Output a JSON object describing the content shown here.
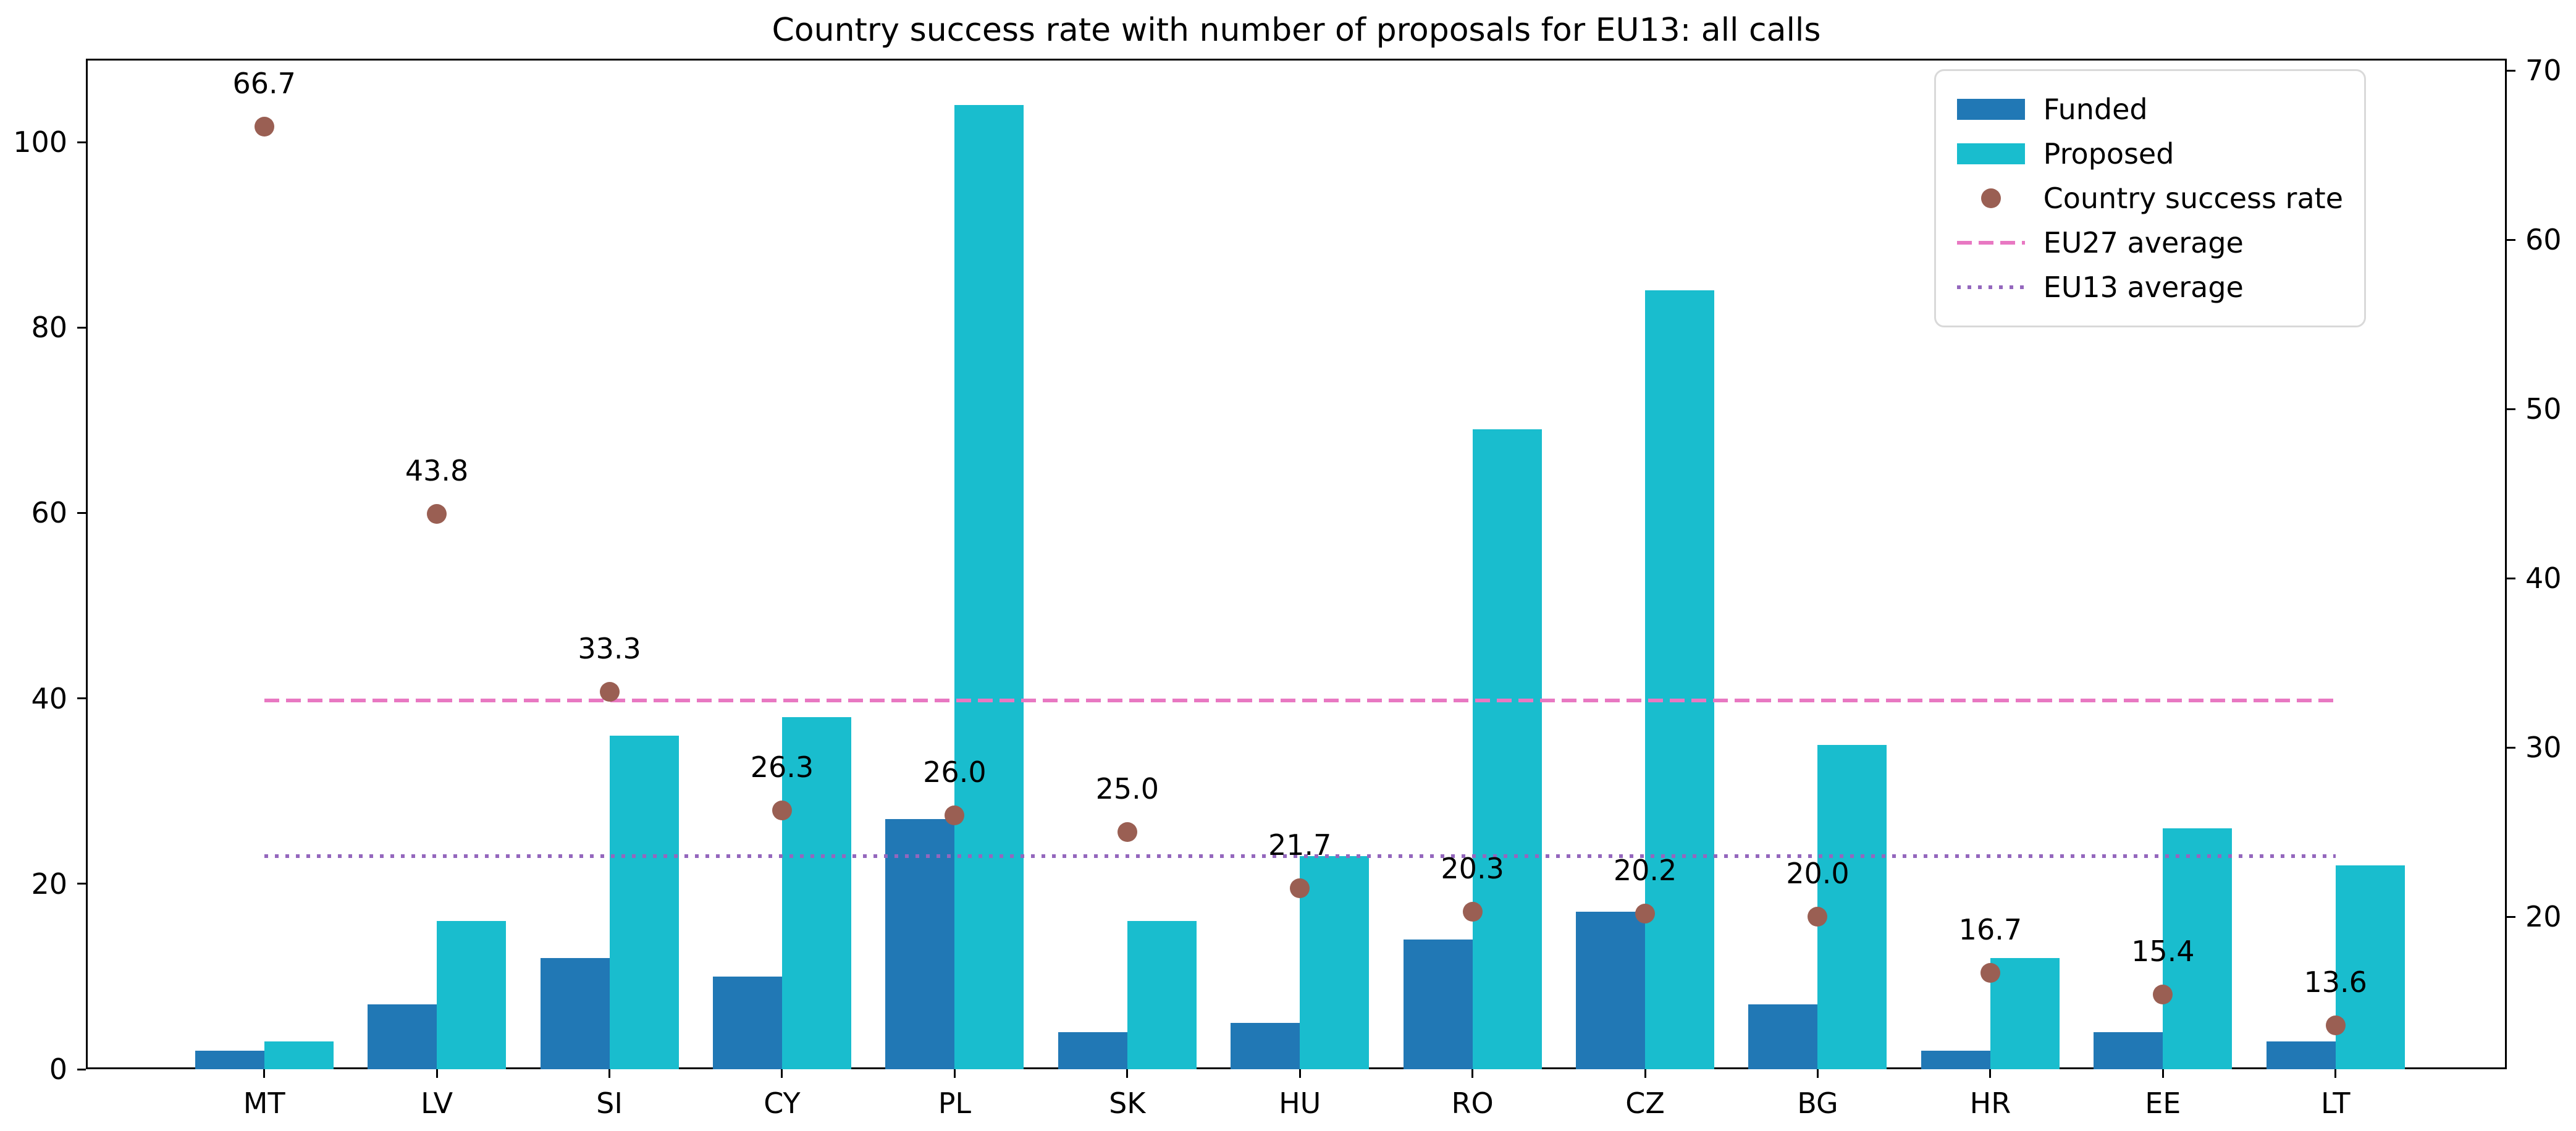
{
  "title": "Country success rate with number of proposals for EU13: all calls",
  "chart_data": {
    "type": "bar",
    "title": "Country success rate with number of proposals for EU13: all calls",
    "categories": [
      "MT",
      "LV",
      "SI",
      "CY",
      "PL",
      "SK",
      "HU",
      "RO",
      "CZ",
      "BG",
      "HR",
      "EE",
      "LT"
    ],
    "series": [
      {
        "name": "Funded",
        "color": "#2178b5",
        "axis": "left",
        "values": [
          2,
          7,
          12,
          10,
          27,
          4,
          5,
          14,
          17,
          7,
          2,
          4,
          3
        ]
      },
      {
        "name": "Proposed",
        "color": "#19bdce",
        "axis": "left",
        "values": [
          3,
          16,
          36,
          38,
          104,
          16,
          23,
          69,
          84,
          35,
          12,
          26,
          22
        ]
      }
    ],
    "scatter": {
      "name": "Country success rate",
      "color": "#9a5f53",
      "axis": "right",
      "values": [
        66.7,
        43.8,
        33.3,
        26.3,
        26.0,
        25.0,
        21.7,
        20.3,
        20.2,
        20.0,
        16.7,
        15.4,
        13.6
      ],
      "labels": [
        "66.7",
        "43.8",
        "33.3",
        "26.3",
        "26.0",
        "25.0",
        "21.7",
        "20.3",
        "20.2",
        "20.0",
        "16.7",
        "15.4",
        "13.6"
      ]
    },
    "reference_lines": [
      {
        "name": "EU27 average",
        "axis": "right",
        "value": 32.8,
        "color": "#e878c2",
        "style": "dashed"
      },
      {
        "name": "EU13 average",
        "axis": "right",
        "value": 23.6,
        "color": "#9467bd",
        "style": "dotted"
      }
    ],
    "left_axis": {
      "ticks": [
        0,
        20,
        40,
        60,
        80,
        100
      ],
      "range": [
        0,
        109
      ]
    },
    "right_axis": {
      "ticks": [
        20,
        30,
        40,
        50,
        60,
        70
      ],
      "range": [
        11.0,
        70.7
      ]
    },
    "grid": false,
    "legend_position": "upper right",
    "xlabel": "",
    "ylabel": ""
  }
}
